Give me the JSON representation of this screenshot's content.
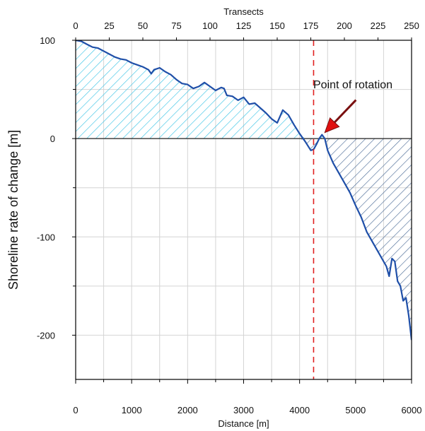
{
  "chart_data": {
    "type": "line",
    "xlabel": "Distance [m]",
    "x2label": "Transects",
    "ylabel": "Shoreline rate of change [m]",
    "xlim": [
      0,
      6000
    ],
    "ylim": [
      -245,
      100
    ],
    "x2lim": [
      0,
      250
    ],
    "x_ticks": [
      0,
      1000,
      2000,
      3000,
      4000,
      5000,
      6000
    ],
    "x_tick_labels": [
      "0",
      "1000",
      "2000",
      "3000",
      "4000",
      "5000",
      "6000"
    ],
    "x_minor_ticks": [
      500,
      1500,
      2500,
      3500,
      4500,
      5500
    ],
    "x2_ticks": [
      0,
      25,
      50,
      75,
      100,
      125,
      150,
      175,
      200,
      225,
      250
    ],
    "x2_tick_labels": [
      "0",
      "25",
      "50",
      "75",
      "100",
      "125",
      "150",
      "175",
      "200",
      "225",
      "250"
    ],
    "y_ticks": [
      100,
      0,
      -100,
      -200
    ],
    "y_tick_labels": [
      "100",
      "0",
      "-100",
      "-200"
    ],
    "y_minor_ticks": [
      50,
      -50,
      -150
    ],
    "grid": true,
    "series": [
      {
        "color": "#1f4fa8",
        "x": [
          0,
          100,
          200,
          300,
          400,
          500,
          600,
          700,
          800,
          900,
          1000,
          1100,
          1200,
          1300,
          1350,
          1400,
          1500,
          1600,
          1700,
          1800,
          1900,
          2000,
          2100,
          2200,
          2300,
          2400,
          2500,
          2600,
          2650,
          2700,
          2800,
          2900,
          3000,
          3100,
          3200,
          3300,
          3400,
          3500,
          3600,
          3700,
          3800,
          3900,
          4000,
          4100,
          4200,
          4250,
          4300,
          4350,
          4400,
          4450,
          4500,
          4600,
          4700,
          4800,
          4900,
          5000,
          5100,
          5200,
          5300,
          5400,
          5500,
          5550,
          5600,
          5650,
          5700,
          5750,
          5800,
          5850,
          5900,
          5950,
          6000
        ],
        "values": [
          100,
          99,
          96,
          93,
          92,
          89,
          86,
          83,
          81,
          80,
          77,
          75,
          73,
          70,
          66,
          70,
          72,
          68,
          65,
          60,
          56,
          55,
          51,
          53,
          57,
          53,
          49,
          52,
          51,
          44,
          43,
          39,
          42,
          35,
          36,
          31,
          26,
          20,
          16,
          29,
          24,
          14,
          5,
          -3,
          -12,
          -11,
          -6,
          0,
          4,
          0,
          -12,
          -25,
          -35,
          -45,
          -55,
          -68,
          -80,
          -95,
          -105,
          -115,
          -125,
          -130,
          -140,
          -122,
          -125,
          -145,
          -150,
          -165,
          -162,
          -180,
          -205
        ]
      }
    ],
    "reference_line": {
      "x": 4250,
      "color": "#e02020"
    },
    "fills": {
      "positive_color": "#3ec5e6",
      "negative_color": "#4e6e98"
    },
    "annotation": {
      "text": "Point of rotation",
      "x": 4400,
      "y": 4,
      "arrow_color": "#e01010"
    }
  }
}
